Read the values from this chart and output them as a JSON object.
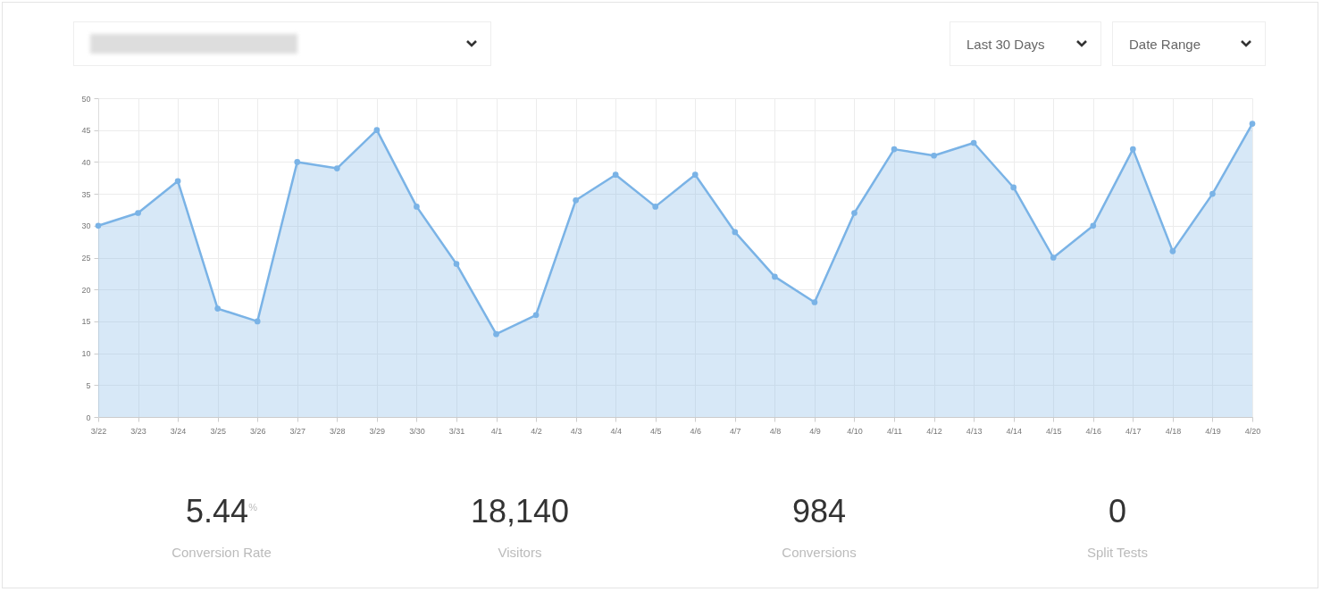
{
  "chart_data": {
    "type": "area",
    "categories": [
      "3/22",
      "3/23",
      "3/24",
      "3/25",
      "3/26",
      "3/27",
      "3/28",
      "3/29",
      "3/30",
      "3/31",
      "4/1",
      "4/2",
      "4/3",
      "4/4",
      "4/5",
      "4/6",
      "4/7",
      "4/8",
      "4/9",
      "4/10",
      "4/11",
      "4/12",
      "4/13",
      "4/14",
      "4/15",
      "4/16",
      "4/17",
      "4/18",
      "4/19",
      "4/20"
    ],
    "series": [
      {
        "color": "#7ab3e6",
        "values": [
          30,
          32,
          37,
          17,
          15,
          40,
          39,
          45,
          33,
          24,
          13,
          16,
          34,
          38,
          33,
          38,
          29,
          22,
          18,
          32,
          42,
          41,
          43,
          36,
          25,
          30,
          42,
          26,
          35,
          46
        ]
      }
    ],
    "ylim": [
      0,
      50
    ],
    "yticks": [
      0,
      5,
      10,
      15,
      20,
      25,
      30,
      35,
      40,
      45,
      50
    ],
    "grid": true,
    "marker": "circle",
    "annotations": [
      "Last 30 Days",
      "Date Range",
      "5.44$^{%}$",
      "Conversion Rate",
      "18,140",
      "Visitors",
      "984",
      "Conversions",
      "0",
      "Split Tests"
    ]
  }
}
